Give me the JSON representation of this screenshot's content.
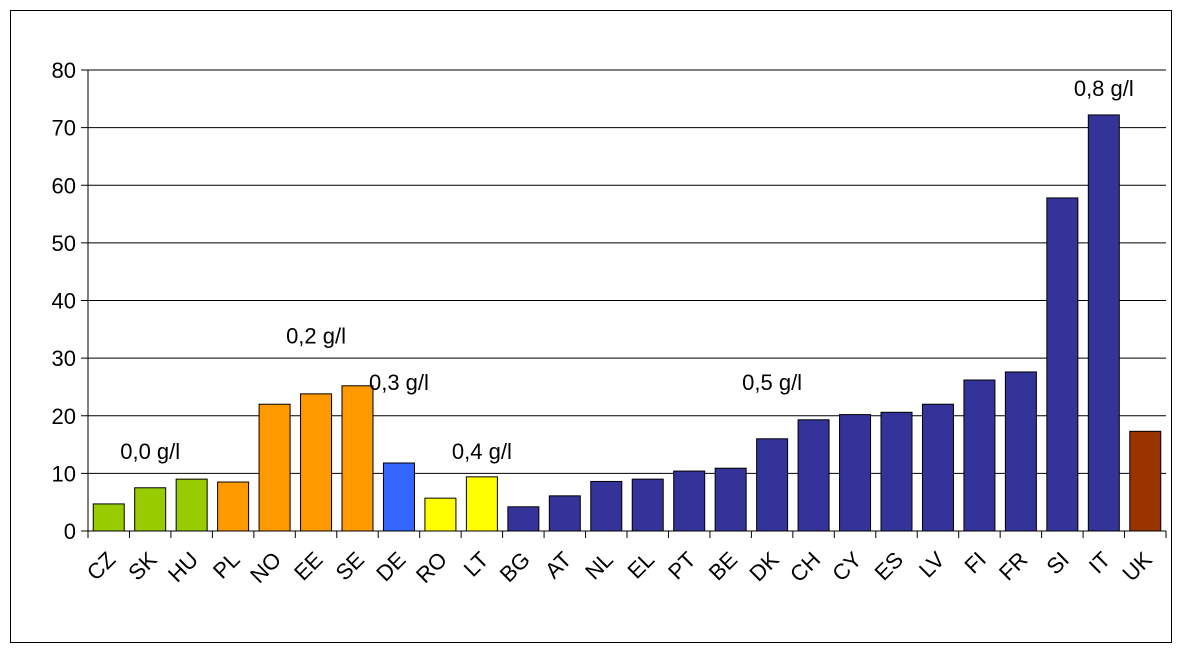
{
  "chart_data": {
    "type": "bar",
    "categories": [
      "CZ",
      "SK",
      "HU",
      "PL",
      "NO",
      "EE",
      "SE",
      "DE",
      "RO",
      "LT",
      "BG",
      "AT",
      "NL",
      "EL",
      "PT",
      "BE",
      "DK",
      "CH",
      "CY",
      "ES",
      "LV",
      "FI",
      "FR",
      "SI",
      "IT",
      "UK"
    ],
    "values": [
      4.7,
      7.5,
      9.0,
      8.5,
      22.0,
      23.8,
      25.2,
      11.8,
      5.7,
      9.4,
      4.2,
      6.1,
      8.6,
      9.0,
      10.4,
      10.9,
      16.0,
      19.3,
      20.2,
      20.6,
      22.0,
      26.2,
      27.6,
      57.8,
      72.2,
      17.3
    ],
    "colors": [
      "#99cc00",
      "#99cc00",
      "#99cc00",
      "#ff9900",
      "#ff9900",
      "#ff9900",
      "#ff9900",
      "#3366ff",
      "#ffff00",
      "#ffff00",
      "#333399",
      "#333399",
      "#333399",
      "#333399",
      "#333399",
      "#333399",
      "#333399",
      "#333399",
      "#333399",
      "#333399",
      "#333399",
      "#333399",
      "#333399",
      "#333399",
      "#333399",
      "#993300"
    ],
    "ylim": [
      0,
      80
    ],
    "yticks": [
      0,
      10,
      20,
      30,
      40,
      50,
      60,
      70,
      80
    ],
    "grid": true,
    "legend": "none",
    "annotations": [
      {
        "text": "0,0 g/l",
        "category": "SK",
        "value": 12.5
      },
      {
        "text": "0,2 g/l",
        "category": "EE",
        "value": 32.5
      },
      {
        "text": "0,3 g/l",
        "category": "DE",
        "value": 24.5
      },
      {
        "text": "0,4 g/l",
        "category": "LT",
        "value": 12.5
      },
      {
        "text": "0,5 g/l",
        "category": "DK",
        "value": 24.5
      },
      {
        "text": "0,8 g/l",
        "category": "IT",
        "value": 75.5
      }
    ]
  }
}
